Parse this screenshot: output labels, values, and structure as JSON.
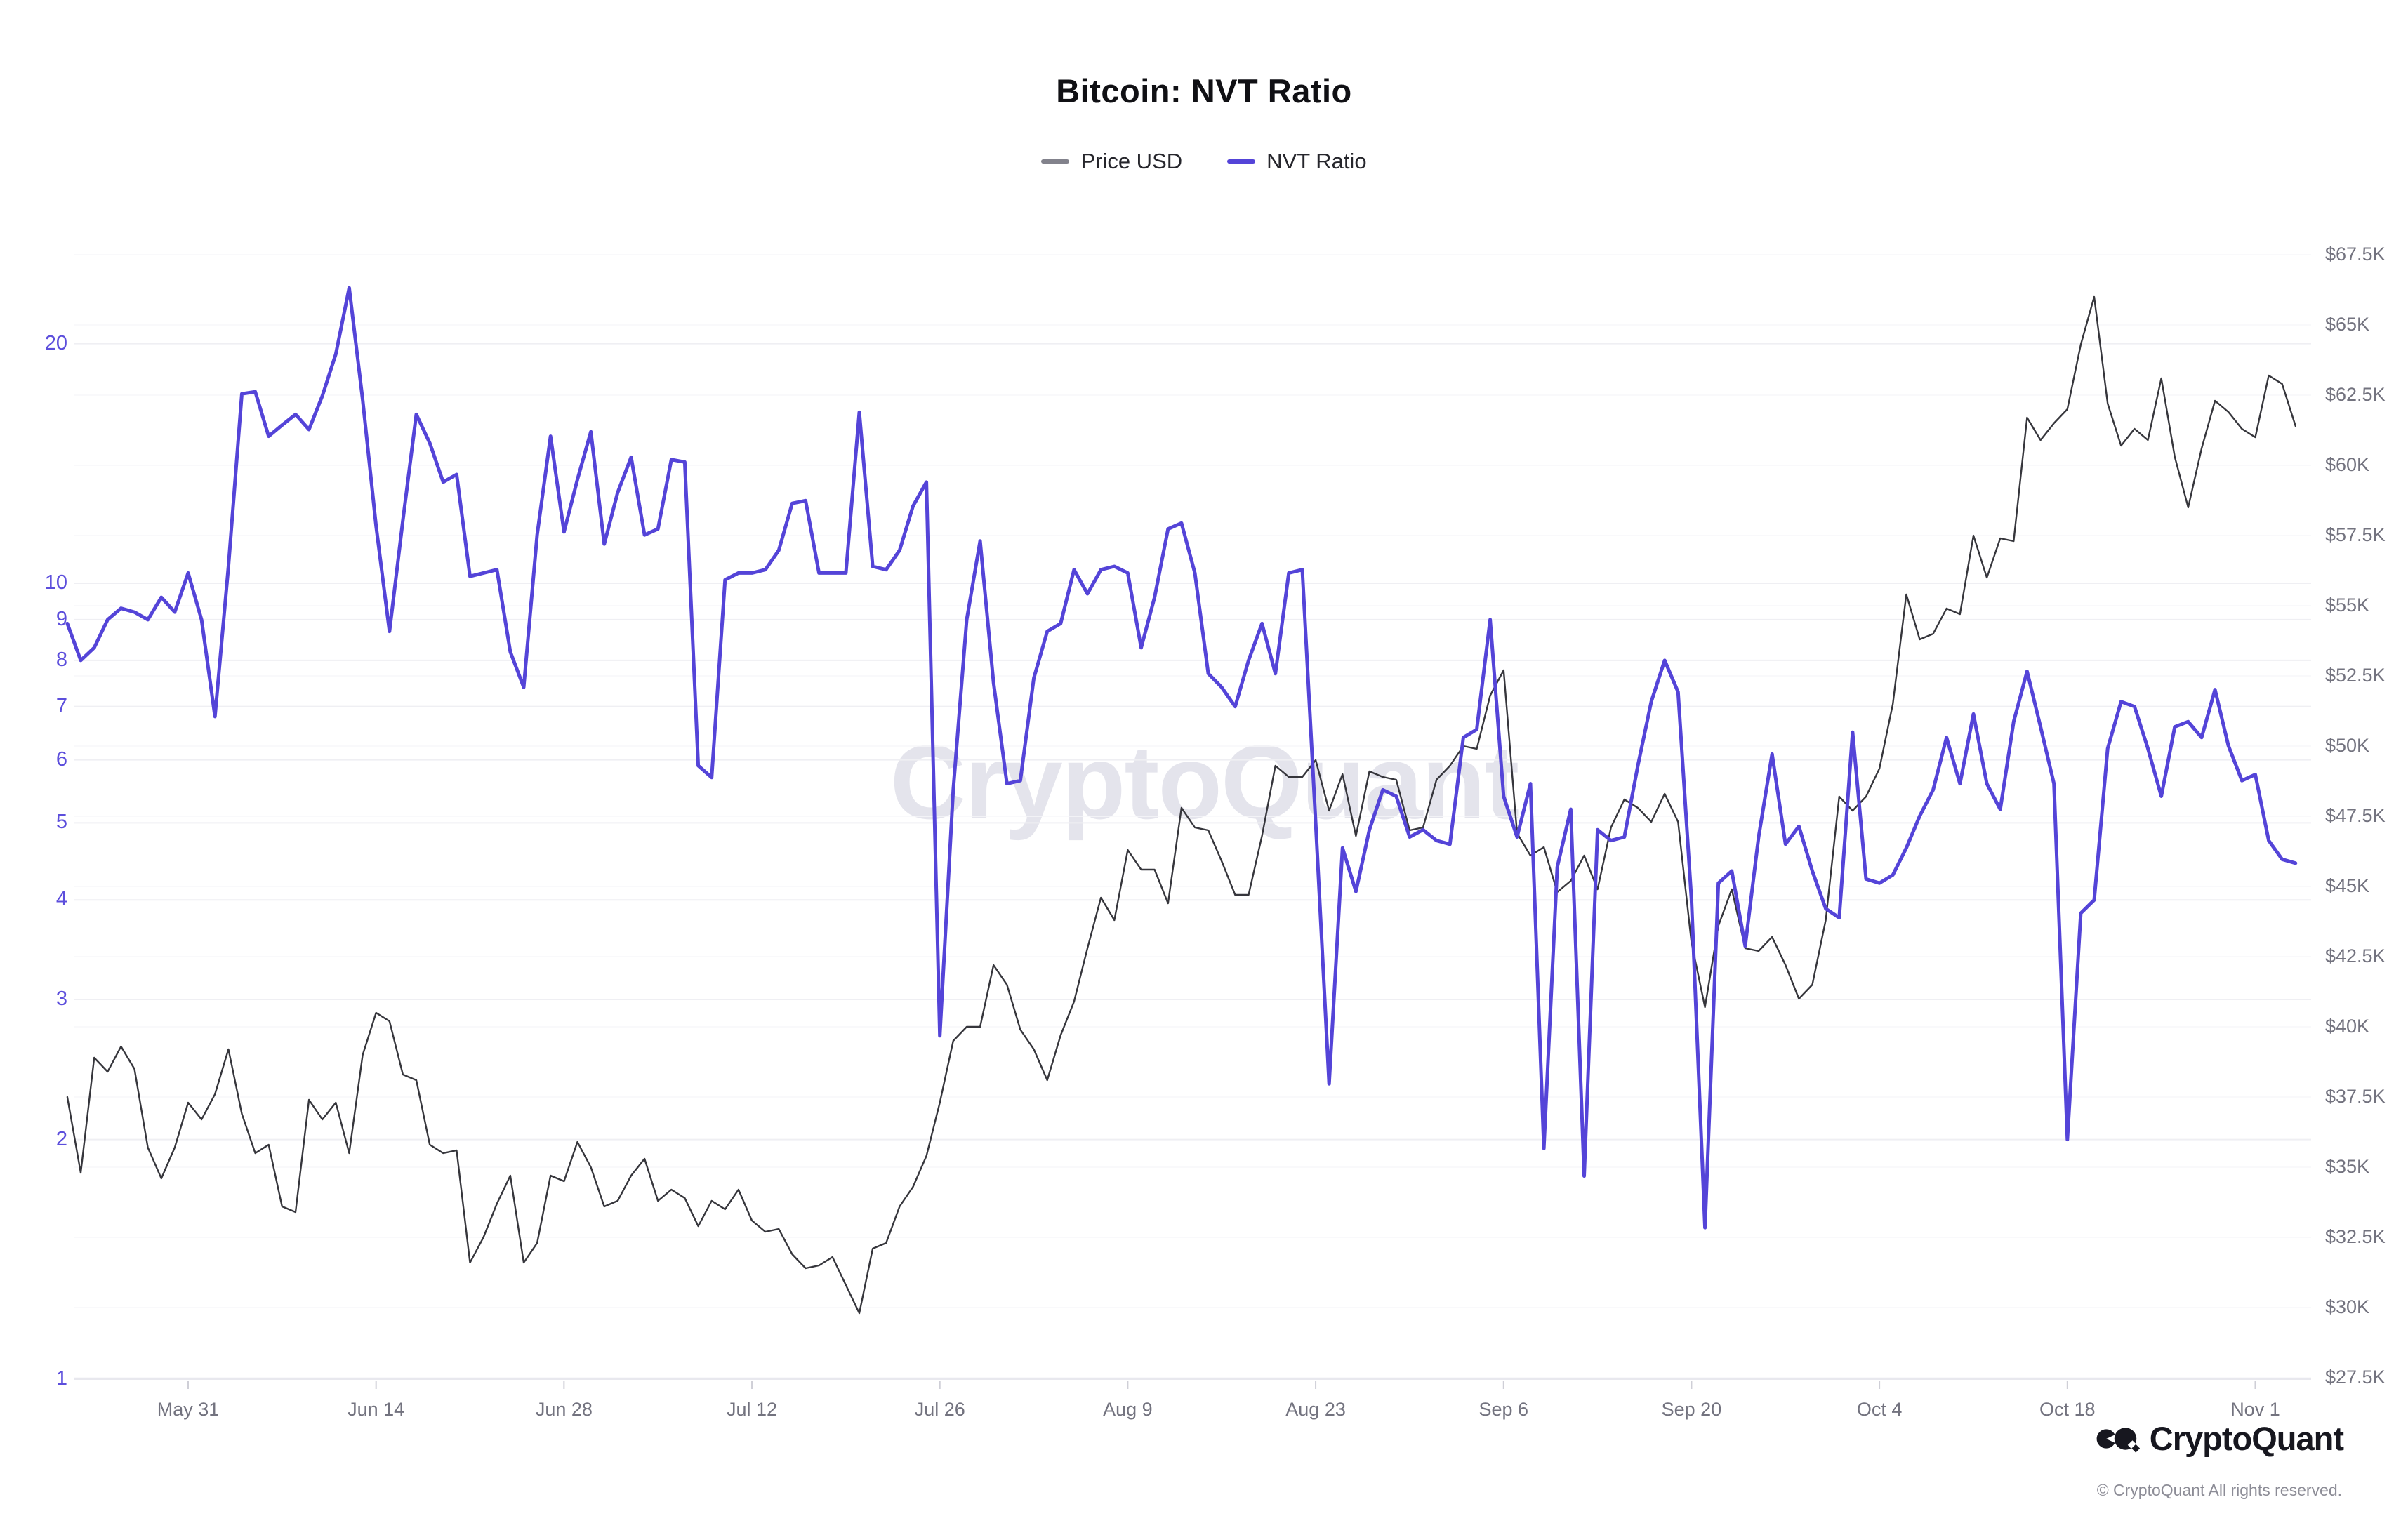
{
  "title": "Bitcoin: NVT Ratio",
  "watermark": "CryptoQuant",
  "branding": {
    "logo_text": "CryptoQuant",
    "copyright": "© CryptoQuant All rights reserved."
  },
  "legend": {
    "position": "top",
    "items": [
      {
        "label": "Price USD",
        "color": "#82828c"
      },
      {
        "label": "NVT Ratio",
        "color": "#5444d8"
      }
    ]
  },
  "axes": {
    "x": {
      "ticks": [
        {
          "label": "May 31",
          "day": 9
        },
        {
          "label": "Jun 14",
          "day": 23
        },
        {
          "label": "Jun 28",
          "day": 37
        },
        {
          "label": "Jul 12",
          "day": 51
        },
        {
          "label": "Jul 26",
          "day": 65
        },
        {
          "label": "Aug 9",
          "day": 79
        },
        {
          "label": "Aug 23",
          "day": 93
        },
        {
          "label": "Sep 6",
          "day": 107
        },
        {
          "label": "Sep 20",
          "day": 121
        },
        {
          "label": "Oct 4",
          "day": 135
        },
        {
          "label": "Oct 18",
          "day": 149
        },
        {
          "label": "Nov 1",
          "day": 163
        }
      ]
    },
    "y_left": {
      "scale": "log",
      "color": "#5c4edc",
      "range": [
        1,
        28.8
      ],
      "ticks": [
        20,
        10,
        9,
        8,
        7,
        6,
        5,
        4,
        3,
        2,
        1
      ]
    },
    "y_right": {
      "scale": "linear",
      "color": "#73737f",
      "range": [
        27500,
        67500
      ],
      "ticks": [
        {
          "label": "$67.5K",
          "value": 67500
        },
        {
          "label": "$65K",
          "value": 65000
        },
        {
          "label": "$62.5K",
          "value": 62500
        },
        {
          "label": "$60K",
          "value": 60000
        },
        {
          "label": "$57.5K",
          "value": 57500
        },
        {
          "label": "$55K",
          "value": 55000
        },
        {
          "label": "$52.5K",
          "value": 52500
        },
        {
          "label": "$50K",
          "value": 50000
        },
        {
          "label": "$47.5K",
          "value": 47500
        },
        {
          "label": "$45K",
          "value": 45000
        },
        {
          "label": "$42.5K",
          "value": 42500
        },
        {
          "label": "$40K",
          "value": 40000
        },
        {
          "label": "$37.5K",
          "value": 37500
        },
        {
          "label": "$35K",
          "value": 35000
        },
        {
          "label": "$32.5K",
          "value": 32500
        },
        {
          "label": "$30K",
          "value": 30000
        },
        {
          "label": "$27.5K",
          "value": 27500
        }
      ]
    }
  },
  "chart_data": {
    "type": "line",
    "title": "Bitcoin: NVT Ratio",
    "grid": true,
    "legend_position": "top",
    "x_unit": "daily",
    "y_left_range": [
      1,
      28.8
    ],
    "y_right_range": [
      27500,
      67500
    ],
    "x": [
      "May 22",
      "May 23",
      "May 24",
      "May 25",
      "May 26",
      "May 27",
      "May 28",
      "May 29",
      "May 30",
      "May 31",
      "Jun 1",
      "Jun 2",
      "Jun 3",
      "Jun 4",
      "Jun 5",
      "Jun 6",
      "Jun 7",
      "Jun 8",
      "Jun 9",
      "Jun 10",
      "Jun 11",
      "Jun 12",
      "Jun 13",
      "Jun 14",
      "Jun 15",
      "Jun 16",
      "Jun 17",
      "Jun 18",
      "Jun 19",
      "Jun 20",
      "Jun 21",
      "Jun 22",
      "Jun 23",
      "Jun 24",
      "Jun 25",
      "Jun 26",
      "Jun 27",
      "Jun 28",
      "Jun 29",
      "Jun 30",
      "Jul 1",
      "Jul 2",
      "Jul 3",
      "Jul 4",
      "Jul 5",
      "Jul 6",
      "Jul 7",
      "Jul 8",
      "Jul 9",
      "Jul 10",
      "Jul 11",
      "Jul 12",
      "Jul 13",
      "Jul 14",
      "Jul 15",
      "Jul 16",
      "Jul 17",
      "Jul 18",
      "Jul 19",
      "Jul 20",
      "Jul 21",
      "Jul 22",
      "Jul 23",
      "Jul 24",
      "Jul 25",
      "Jul 26",
      "Jul 27",
      "Jul 28",
      "Jul 29",
      "Jul 30",
      "Jul 31",
      "Aug 1",
      "Aug 2",
      "Aug 3",
      "Aug 4",
      "Aug 5",
      "Aug 6",
      "Aug 7",
      "Aug 8",
      "Aug 9",
      "Aug 10",
      "Aug 11",
      "Aug 12",
      "Aug 13",
      "Aug 14",
      "Aug 15",
      "Aug 16",
      "Aug 17",
      "Aug 18",
      "Aug 19",
      "Aug 20",
      "Aug 21",
      "Aug 22",
      "Aug 23",
      "Aug 24",
      "Aug 25",
      "Aug 26",
      "Aug 27",
      "Aug 28",
      "Aug 29",
      "Aug 30",
      "Aug 31",
      "Sep 1",
      "Sep 2",
      "Sep 3",
      "Sep 4",
      "Sep 5",
      "Sep 6",
      "Sep 7",
      "Sep 8",
      "Sep 9",
      "Sep 10",
      "Sep 11",
      "Sep 12",
      "Sep 13",
      "Sep 14",
      "Sep 15",
      "Sep 16",
      "Sep 17",
      "Sep 18",
      "Sep 19",
      "Sep 20",
      "Sep 21",
      "Sep 22",
      "Sep 23",
      "Sep 24",
      "Sep 25",
      "Sep 26",
      "Sep 27",
      "Sep 28",
      "Sep 29",
      "Sep 30",
      "Oct 1",
      "Oct 2",
      "Oct 3",
      "Oct 4",
      "Oct 5",
      "Oct 6",
      "Oct 7",
      "Oct 8",
      "Oct 9",
      "Oct 10",
      "Oct 11",
      "Oct 12",
      "Oct 13",
      "Oct 14",
      "Oct 15",
      "Oct 16",
      "Oct 17",
      "Oct 18",
      "Oct 19",
      "Oct 20",
      "Oct 21",
      "Oct 22",
      "Oct 23",
      "Oct 24",
      "Oct 25",
      "Oct 26",
      "Oct 27",
      "Oct 28",
      "Oct 29",
      "Oct 30",
      "Oct 31",
      "Nov 1",
      "Nov 2",
      "Nov 3",
      "Nov 4"
    ],
    "series": [
      {
        "name": "Price USD",
        "axis": "right",
        "color": "#36363c",
        "width": 2.4,
        "values": [
          37500,
          34800,
          38900,
          38400,
          39300,
          38500,
          35700,
          34600,
          35700,
          37300,
          36700,
          37600,
          39200,
          36900,
          35500,
          35800,
          33600,
          33400,
          37400,
          36700,
          37300,
          35500,
          39000,
          40500,
          40200,
          38300,
          38100,
          35800,
          35500,
          35600,
          31600,
          32500,
          33700,
          34700,
          31600,
          32300,
          34700,
          34500,
          35900,
          35000,
          33600,
          33800,
          34700,
          35300,
          33800,
          34200,
          33900,
          32900,
          33800,
          33500,
          34200,
          33100,
          32700,
          32800,
          31900,
          31400,
          31500,
          31800,
          30800,
          29800,
          32100,
          32300,
          33600,
          34300,
          35400,
          37300,
          39500,
          40000,
          40000,
          42200,
          41500,
          39900,
          39200,
          38100,
          39700,
          40900,
          42800,
          44600,
          43800,
          46300,
          45600,
          45600,
          44400,
          47800,
          47100,
          47000,
          45900,
          44700,
          44700,
          46800,
          49300,
          48900,
          48900,
          49500,
          47700,
          49000,
          46800,
          49100,
          48900,
          48800,
          47000,
          47100,
          48800,
          49300,
          50000,
          49900,
          51800,
          52700,
          46900,
          46100,
          46400,
          44800,
          45200,
          46100,
          44900,
          47100,
          48100,
          47800,
          47300,
          48300,
          47300,
          43000,
          40700,
          43600,
          44900,
          42800,
          42700,
          43200,
          42200,
          41000,
          41500,
          43800,
          48200,
          47700,
          48200,
          49200,
          51500,
          55400,
          53800,
          54000,
          54900,
          54700,
          57500,
          56000,
          57400,
          57300,
          61700,
          60900,
          61500,
          62000,
          64300,
          66000,
          62200,
          60700,
          61300,
          60900,
          63100,
          60300,
          58500,
          60600,
          62300,
          61900,
          61300,
          61000,
          63200,
          62900,
          61400
        ]
      },
      {
        "name": "NVT Ratio",
        "axis": "left",
        "color": "#5444d8",
        "width": 5,
        "values": [
          8.9,
          8.0,
          8.3,
          9.0,
          9.3,
          9.2,
          9.0,
          9.6,
          9.2,
          10.3,
          9.0,
          6.8,
          10.5,
          17.3,
          17.4,
          15.3,
          15.8,
          16.3,
          15.6,
          17.2,
          19.4,
          23.5,
          17.0,
          11.8,
          8.7,
          12.0,
          16.3,
          15.0,
          13.4,
          13.7,
          10.2,
          10.3,
          10.4,
          8.2,
          7.4,
          11.5,
          15.3,
          11.6,
          13.5,
          15.5,
          11.2,
          13.0,
          14.4,
          11.5,
          11.7,
          14.3,
          14.2,
          5.9,
          5.7,
          10.1,
          10.3,
          10.3,
          10.4,
          11.0,
          12.6,
          12.7,
          10.3,
          10.3,
          10.3,
          16.4,
          10.5,
          10.4,
          11.0,
          12.5,
          13.4,
          2.7,
          5.5,
          9.0,
          11.3,
          7.5,
          5.6,
          5.65,
          7.6,
          8.7,
          8.9,
          10.4,
          9.7,
          10.4,
          10.5,
          10.3,
          8.3,
          9.6,
          11.7,
          11.9,
          10.3,
          7.7,
          7.4,
          7.0,
          8.0,
          8.9,
          7.7,
          10.3,
          10.4,
          5.0,
          2.35,
          4.65,
          4.1,
          4.9,
          5.5,
          5.4,
          4.8,
          4.9,
          4.75,
          4.7,
          6.4,
          6.55,
          9.0,
          5.4,
          4.8,
          5.6,
          1.95,
          4.4,
          5.2,
          1.8,
          4.9,
          4.75,
          4.8,
          5.9,
          7.1,
          8.0,
          7.3,
          4.0,
          1.55,
          4.2,
          4.35,
          3.5,
          4.8,
          6.1,
          4.7,
          4.95,
          4.35,
          3.9,
          3.8,
          6.5,
          4.25,
          4.2,
          4.3,
          4.65,
          5.1,
          5.5,
          6.4,
          5.6,
          6.85,
          5.6,
          5.2,
          6.7,
          7.75,
          6.6,
          5.6,
          2.0,
          3.85,
          4.0,
          6.2,
          7.1,
          7.0,
          6.2,
          5.4,
          6.6,
          6.7,
          6.4,
          7.35,
          6.25,
          5.65,
          5.75,
          4.75,
          4.5,
          4.45
        ]
      }
    ]
  }
}
